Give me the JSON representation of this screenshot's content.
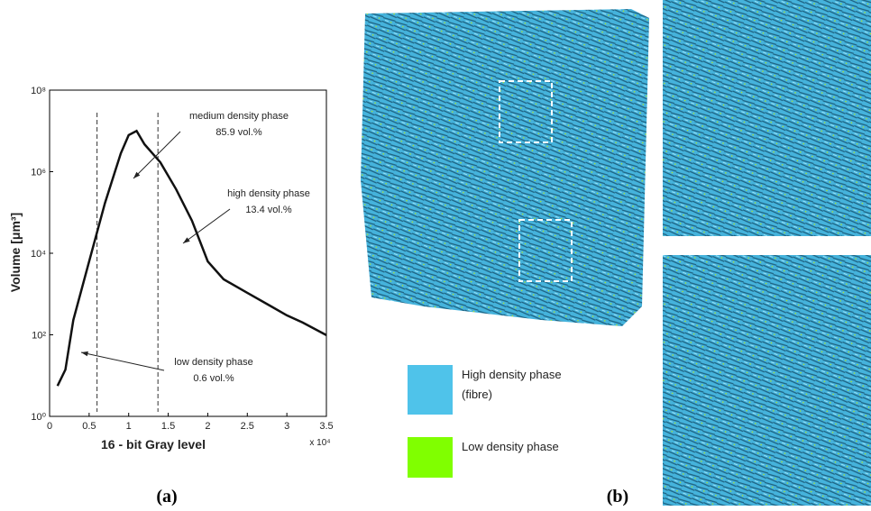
{
  "chart_data": {
    "type": "line",
    "log_y": true,
    "ylabel": "Volume [μm³]",
    "xlabel": "16 - bit Gray level",
    "x_multiplier": "x 10⁴",
    "x": [
      0.1,
      0.2,
      0.3,
      0.5,
      0.7,
      0.9,
      1.0,
      1.1,
      1.2,
      1.4,
      1.6,
      1.8,
      2.0,
      2.2,
      2.5,
      2.8,
      3.0,
      3.2,
      3.5
    ],
    "series": [
      {
        "color": "#111111",
        "values": [
          5.6,
          14,
          230,
          6300,
          170000,
          2800000,
          7900000,
          10000000,
          4700000,
          1700000,
          370000,
          63000,
          6300,
          2300,
          1070,
          500,
          300,
          200,
          98
        ]
      }
    ],
    "vlines": [
      0.6,
      1.37
    ],
    "xlim": [
      0,
      3.5
    ],
    "xticks": [
      0,
      0.5,
      1,
      1.5,
      2,
      2.5,
      3,
      3.5
    ],
    "ylim": [
      1,
      100000000
    ],
    "yticks": [
      {
        "value": 1,
        "label": "10⁰"
      },
      {
        "value": 100,
        "label": "10²"
      },
      {
        "value": 10000,
        "label": "10⁴"
      },
      {
        "value": 1000000,
        "label": "10⁶"
      },
      {
        "value": 100000000,
        "label": "10⁸"
      }
    ],
    "annotations": [
      [
        "medium density phase",
        "85.9 vol.%"
      ],
      [
        "high density phase",
        "13.4 vol.%"
      ],
      [
        "low density phase",
        "0.6 vol.%"
      ]
    ]
  },
  "panel_b": {
    "legend": [
      {
        "label": [
          "High density phase",
          "(fibre)"
        ],
        "color": "#4fc3ea"
      },
      {
        "label": [
          "Low density phase"
        ],
        "color": "#80ff00"
      }
    ]
  },
  "captions": [
    "(a)",
    "(b)"
  ]
}
